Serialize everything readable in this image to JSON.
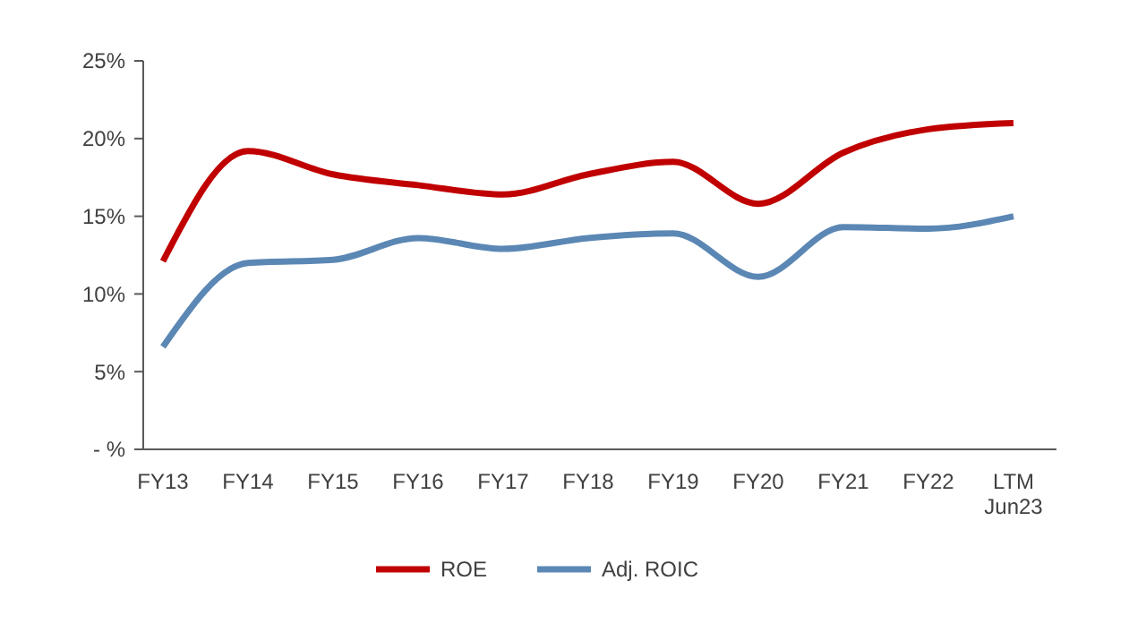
{
  "chart_data": {
    "type": "line",
    "categories": [
      "FY13",
      "FY14",
      "FY15",
      "FY16",
      "FY17",
      "FY18",
      "FY19",
      "FY20",
      "FY21",
      "FY22",
      "LTM Jun23"
    ],
    "series": [
      {
        "name": "ROE",
        "color": "#c00000",
        "values": [
          12.1,
          19.2,
          17.7,
          17.0,
          16.4,
          17.7,
          18.5,
          15.8,
          19.1,
          20.6,
          21.0
        ]
      },
      {
        "name": "Adj. ROIC",
        "color": "#5b87b4",
        "values": [
          6.6,
          12.0,
          12.2,
          13.6,
          12.9,
          13.6,
          13.9,
          11.1,
          14.3,
          14.2,
          15.0
        ]
      }
    ],
    "ylim": [
      0,
      25
    ],
    "yticks": [
      {
        "value": 0,
        "label": "- %"
      },
      {
        "value": 5,
        "label": "5%"
      },
      {
        "value": 10,
        "label": "10%"
      },
      {
        "value": 15,
        "label": "15%"
      },
      {
        "value": 20,
        "label": "20%"
      },
      {
        "value": 25,
        "label": "25%"
      }
    ],
    "grid": false,
    "legend": "bottom",
    "marker": "none",
    "line_style": "solid"
  }
}
